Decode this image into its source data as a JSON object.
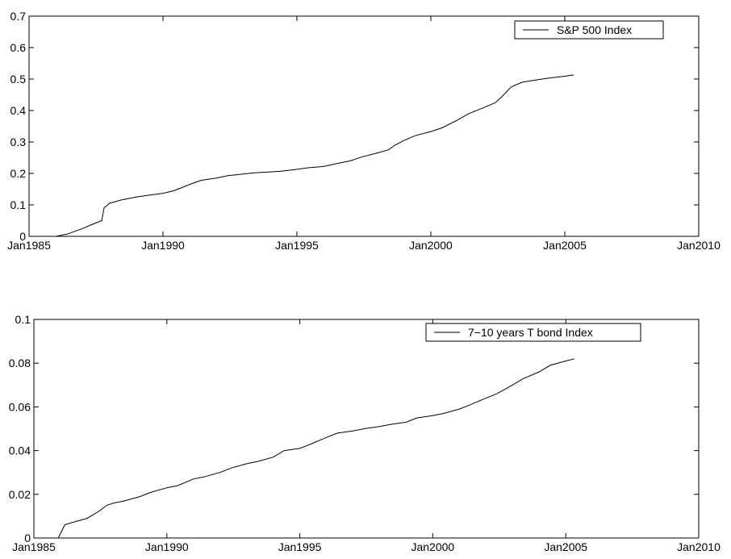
{
  "chart_data": [
    {
      "type": "line",
      "title": "",
      "xlabel": "",
      "ylabel": "",
      "x_type": "date",
      "xlim": [
        "1985-01-01",
        "2010-01-01"
      ],
      "ylim": [
        0,
        0.7
      ],
      "x_ticks": [
        "1985-01-01",
        "1990-01-01",
        "1995-01-01",
        "2000-01-01",
        "2005-01-01",
        "2010-01-01"
      ],
      "x_tick_labels": [
        "Jan1985",
        "Jan1990",
        "Jan1995",
        "Jan2000",
        "Jan2005",
        "Jan2010"
      ],
      "y_ticks": [
        0,
        0.1,
        0.2,
        0.3,
        0.4,
        0.5,
        0.6,
        0.7
      ],
      "y_tick_labels": [
        "0",
        "0.1",
        "0.2",
        "0.3",
        "0.4",
        "0.5",
        "0.6",
        "0.7"
      ],
      "grid": false,
      "legend": {
        "placement": "top-right"
      },
      "series": [
        {
          "name": "S&P 500 Index",
          "color": "#000000",
          "points": [
            [
              "1986-01-01",
              0.0
            ],
            [
              "1986-06-01",
              0.007
            ],
            [
              "1987-01-01",
              0.025
            ],
            [
              "1987-06-01",
              0.04
            ],
            [
              "1987-09-20",
              0.05
            ],
            [
              "1987-10-20",
              0.09
            ],
            [
              "1988-01-01",
              0.105
            ],
            [
              "1988-06-01",
              0.115
            ],
            [
              "1989-01-01",
              0.125
            ],
            [
              "1989-06-01",
              0.13
            ],
            [
              "1990-01-01",
              0.137
            ],
            [
              "1990-06-01",
              0.145
            ],
            [
              "1991-01-01",
              0.165
            ],
            [
              "1991-06-01",
              0.178
            ],
            [
              "1992-01-01",
              0.185
            ],
            [
              "1992-06-01",
              0.193
            ],
            [
              "1993-01-01",
              0.198
            ],
            [
              "1993-06-01",
              0.202
            ],
            [
              "1994-01-01",
              0.205
            ],
            [
              "1994-06-01",
              0.207
            ],
            [
              "1995-01-01",
              0.213
            ],
            [
              "1995-06-01",
              0.218
            ],
            [
              "1996-01-01",
              0.222
            ],
            [
              "1996-06-01",
              0.23
            ],
            [
              "1997-01-01",
              0.24
            ],
            [
              "1997-06-01",
              0.252
            ],
            [
              "1998-01-01",
              0.265
            ],
            [
              "1998-06-01",
              0.275
            ],
            [
              "1998-09-01",
              0.29
            ],
            [
              "1999-01-01",
              0.305
            ],
            [
              "1999-06-01",
              0.32
            ],
            [
              "2000-01-01",
              0.333
            ],
            [
              "2000-06-01",
              0.345
            ],
            [
              "2001-01-01",
              0.37
            ],
            [
              "2001-06-01",
              0.39
            ],
            [
              "2002-01-01",
              0.41
            ],
            [
              "2002-06-01",
              0.425
            ],
            [
              "2002-09-01",
              0.445
            ],
            [
              "2003-01-01",
              0.475
            ],
            [
              "2003-06-01",
              0.49
            ],
            [
              "2004-01-01",
              0.498
            ],
            [
              "2004-06-01",
              0.503
            ],
            [
              "2005-01-01",
              0.509
            ],
            [
              "2005-05-01",
              0.513
            ]
          ]
        }
      ]
    },
    {
      "type": "line",
      "title": "",
      "xlabel": "",
      "ylabel": "",
      "x_type": "date",
      "xlim": [
        "1985-01-01",
        "2010-01-01"
      ],
      "ylim": [
        0,
        0.1
      ],
      "x_ticks": [
        "1985-01-01",
        "1990-01-01",
        "1995-01-01",
        "2000-01-01",
        "2005-01-01",
        "2010-01-01"
      ],
      "x_tick_labels": [
        "Jan1985",
        "Jan1990",
        "Jan1995",
        "Jan2000",
        "Jan2005",
        "Jan2010"
      ],
      "y_ticks": [
        0,
        0.02,
        0.04,
        0.06,
        0.08,
        0.1
      ],
      "y_tick_labels": [
        "0",
        "0.02",
        "0.04",
        "0.06",
        "0.08",
        "0.1"
      ],
      "grid": false,
      "legend": {
        "placement": "top-right"
      },
      "series": [
        {
          "name": "7−10 years T bond Index",
          "color": "#000000",
          "points": [
            [
              "1985-12-01",
              0.0
            ],
            [
              "1986-03-01",
              0.006
            ],
            [
              "1986-06-01",
              0.007
            ],
            [
              "1987-01-01",
              0.009
            ],
            [
              "1987-06-01",
              0.012
            ],
            [
              "1987-10-01",
              0.015
            ],
            [
              "1988-01-01",
              0.016
            ],
            [
              "1988-06-01",
              0.017
            ],
            [
              "1989-01-01",
              0.019
            ],
            [
              "1989-06-01",
              0.021
            ],
            [
              "1990-01-01",
              0.023
            ],
            [
              "1990-06-01",
              0.024
            ],
            [
              "1991-01-01",
              0.027
            ],
            [
              "1991-06-01",
              0.028
            ],
            [
              "1992-01-01",
              0.03
            ],
            [
              "1992-06-01",
              0.032
            ],
            [
              "1993-01-01",
              0.034
            ],
            [
              "1993-06-01",
              0.035
            ],
            [
              "1994-01-01",
              0.037
            ],
            [
              "1994-06-01",
              0.04
            ],
            [
              "1995-01-01",
              0.041
            ],
            [
              "1995-06-01",
              0.043
            ],
            [
              "1996-01-01",
              0.046
            ],
            [
              "1996-06-01",
              0.048
            ],
            [
              "1997-01-01",
              0.049
            ],
            [
              "1997-06-01",
              0.05
            ],
            [
              "1998-01-01",
              0.051
            ],
            [
              "1998-06-01",
              0.052
            ],
            [
              "1999-01-01",
              0.053
            ],
            [
              "1999-06-01",
              0.055
            ],
            [
              "2000-01-01",
              0.056
            ],
            [
              "2000-06-01",
              0.057
            ],
            [
              "2001-01-01",
              0.059
            ],
            [
              "2001-06-01",
              0.061
            ],
            [
              "2002-01-01",
              0.064
            ],
            [
              "2002-06-01",
              0.066
            ],
            [
              "2003-01-01",
              0.07
            ],
            [
              "2003-06-01",
              0.073
            ],
            [
              "2004-01-01",
              0.076
            ],
            [
              "2004-06-01",
              0.079
            ],
            [
              "2005-01-01",
              0.081
            ],
            [
              "2005-05-01",
              0.082
            ]
          ]
        }
      ]
    }
  ]
}
